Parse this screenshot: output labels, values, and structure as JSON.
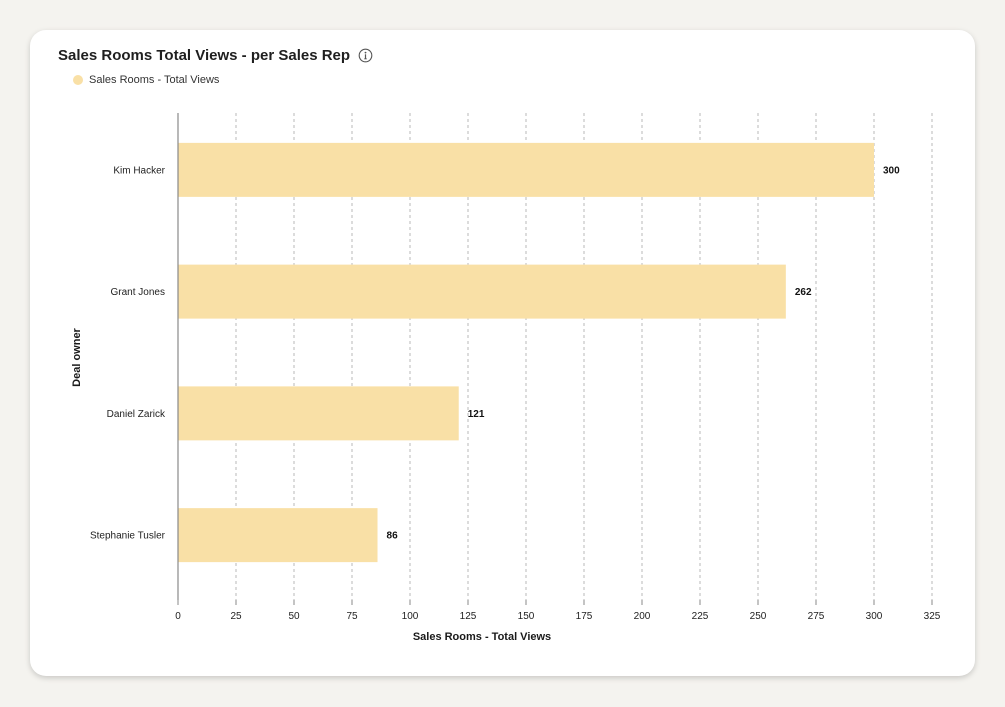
{
  "card": {
    "title": "Sales Rooms Total Views - per Sales Rep",
    "info_icon": "info-icon"
  },
  "legend": {
    "label": "Sales Rooms - Total Views",
    "color": "#f9e0a6"
  },
  "chart_data": {
    "type": "bar",
    "orientation": "horizontal",
    "title": "Sales Rooms Total Views - per Sales Rep",
    "xlabel": "Sales Rooms - Total Views",
    "ylabel": "Deal owner",
    "xlim": [
      0,
      325
    ],
    "xticks": [
      0,
      25,
      50,
      75,
      100,
      125,
      150,
      175,
      200,
      225,
      250,
      275,
      300,
      325
    ],
    "grid": true,
    "legend_position": "top-left",
    "bar_color": "#f9e0a6",
    "categories": [
      "Kim Hacker",
      "Grant Jones",
      "Daniel Zarick",
      "Stephanie Tusler"
    ],
    "series": [
      {
        "name": "Sales Rooms - Total Views",
        "values": [
          300,
          262,
          121,
          86
        ]
      }
    ]
  }
}
